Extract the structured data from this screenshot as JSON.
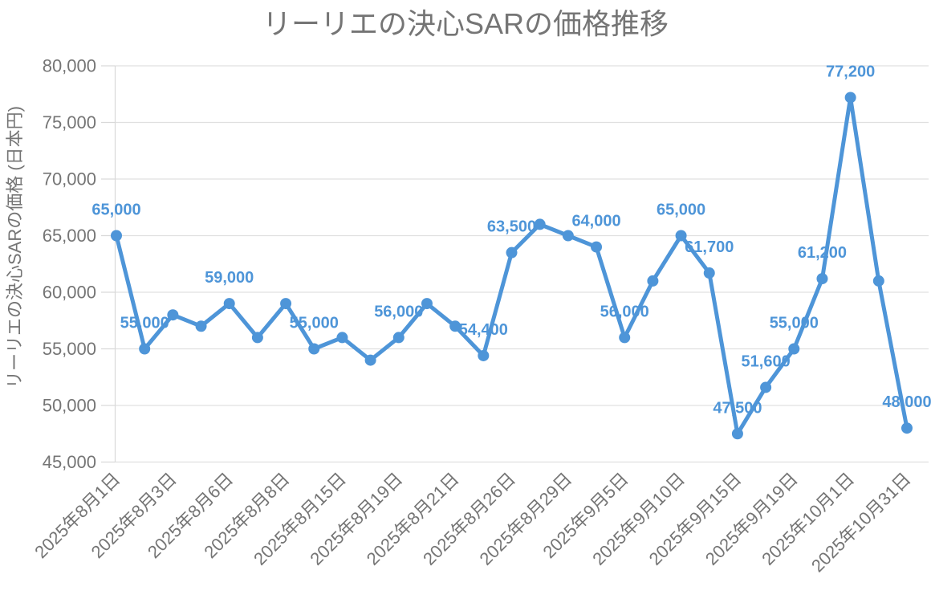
{
  "chart_data": {
    "type": "line",
    "title": "リーリエの決心SARの価格推移",
    "ylabel": "リーリエの決心SARの価格 (日本円)",
    "xlabel": "",
    "ylim": [
      45000,
      80000
    ],
    "ytick_step": 5000,
    "ytick_labels": [
      "80,000",
      "75,000",
      "70,000",
      "65,000",
      "60,000",
      "55,000",
      "50,000",
      "45,000"
    ],
    "grid": true,
    "legend": "none",
    "series_name": "リーリエの決心SARの価格",
    "series_color": "#4e95d8",
    "grid_color": "#e0e0e0",
    "axis_color": "#d9d9d9",
    "text_color": "#757575",
    "x_tick_every": 2,
    "x_tick_labels": [
      "2025年8月1日",
      "2025年8月3日",
      "2025年8月6日",
      "2025年8月8日",
      "2025年8月15日",
      "2025年8月19日",
      "2025年8月21日",
      "2025年8月26日",
      "2025年8月29日",
      "2025年9月5日",
      "2025年9月10日",
      "2025年9月15日",
      "2025年9月19日",
      "2025年10月1日",
      "2025年10月31日"
    ],
    "values": [
      65000,
      55000,
      58000,
      57000,
      59000,
      56000,
      59000,
      55000,
      56000,
      54000,
      56000,
      59000,
      57000,
      54400,
      63500,
      66000,
      65000,
      64000,
      56000,
      61000,
      65000,
      61700,
      47500,
      51600,
      55000,
      61200,
      77200,
      61000,
      48000
    ],
    "data_labels": [
      "65,000",
      "55,000",
      null,
      null,
      "59,000",
      null,
      null,
      "55,000",
      null,
      null,
      "56,000",
      null,
      null,
      "54,400",
      "63,500",
      null,
      null,
      "64,000",
      "56,000",
      null,
      "65,000",
      "61,700",
      "47,500",
      "51,600",
      "55,000",
      "61,200",
      "77,200",
      null,
      "48,000"
    ]
  }
}
